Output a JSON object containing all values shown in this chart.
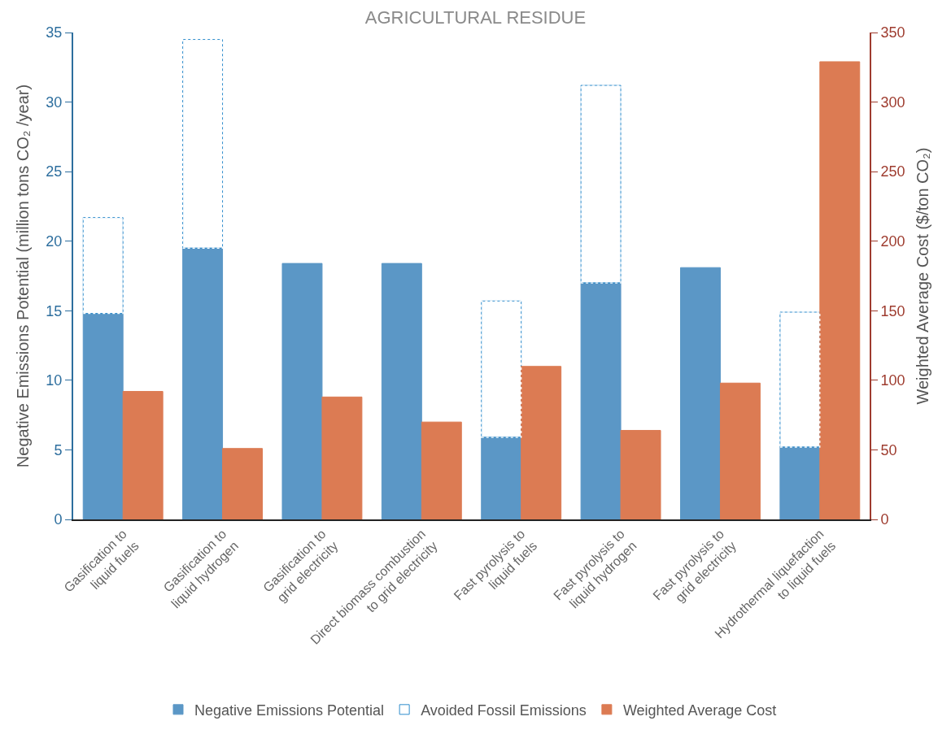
{
  "chart_data": {
    "type": "bar",
    "title": "AGRICULTURAL RESIDUE",
    "ylabel": "Negative Emissions Potential (million tons CO₂ /year)",
    "y2label": "Weighted Average Cost ($/ton CO₂)",
    "categories": [
      "Gasification to\nliquid fuels",
      "Gasification to\nliquid hydrogen",
      "Gasification to\ngrid electricity",
      "Direct biomass combustion\nto grid electricity",
      "Fast pyrolysis to\nliquid fuels",
      "Fast pyrolysis to\nliquid hydrogen",
      "Fast pyrolysis to\ngrid electricity",
      "Hydrothermal liquefaction\nto liquid fuels"
    ],
    "stacked": true,
    "series": [
      {
        "name": "Negative Emissions Potential",
        "color": "#5b97c6",
        "values": [
          14.8,
          19.5,
          18.4,
          18.4,
          5.9,
          17.0,
          18.1,
          5.2
        ]
      },
      {
        "name": "Avoided Fossil Emissions",
        "color": "#2e8ccc",
        "line_style": "dashed",
        "values": [
          6.9,
          15.0,
          null,
          null,
          9.8,
          14.2,
          null,
          9.7
        ]
      },
      {
        "name": "Weighted Average Cost",
        "color": "#dc7b53",
        "axis": "y2",
        "values": [
          92,
          51,
          88,
          70,
          110,
          64,
          98,
          329
        ]
      }
    ],
    "ylim": [
      0,
      35
    ],
    "yticks": [
      0,
      5,
      10,
      15,
      20,
      25,
      30,
      35
    ],
    "y2lim": [
      0,
      350
    ],
    "y2ticks": [
      0,
      50,
      100,
      150,
      200,
      250,
      300,
      350
    ],
    "legend": "bottom"
  }
}
